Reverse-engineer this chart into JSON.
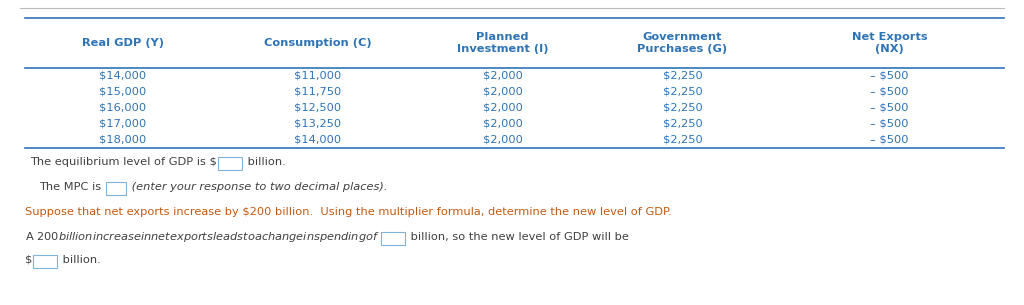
{
  "table_headers": [
    "Real GDP (Y)",
    "Consumption (C)",
    "Planned\nInvestment (I)",
    "Government\nPurchases (G)",
    "Net Exports\n(NX)"
  ],
  "table_rows": [
    [
      "$14,000",
      "$11,000",
      "$2,000",
      "$2,250",
      "– $500"
    ],
    [
      "$15,000",
      "$11,750",
      "$2,000",
      "$2,250",
      "– $500"
    ],
    [
      "$16,000",
      "$12,500",
      "$2,000",
      "$2,250",
      "– $500"
    ],
    [
      "$17,000",
      "$13,250",
      "$2,000",
      "$2,250",
      "– $500"
    ],
    [
      "$18,000",
      "$14,000",
      "$2,000",
      "$2,250",
      "– $500"
    ]
  ],
  "blue": "#2E74B5",
  "orange": "#C45911",
  "dark": "#404040",
  "gray_line": "#BBBBBB",
  "background": "#ffffff",
  "fig_width": 10.24,
  "fig_height": 3.05,
  "dpi": 100,
  "line1a": "The equilibrium level of GDP is $",
  "line1b": " billion.",
  "line2a": "The MPC is ",
  "line2b": " (enter your response to two decimal places).",
  "line3": "Suppose that net exports increase by $200 billion.  Using the multiplier formula, determine the new level of GDP.",
  "line4a": "A $200 billion increase in net exports leads to a change in spending of $",
  "line4b": " billion, so the new level of GDP will be",
  "line5a": "$",
  "line5b": " billion."
}
